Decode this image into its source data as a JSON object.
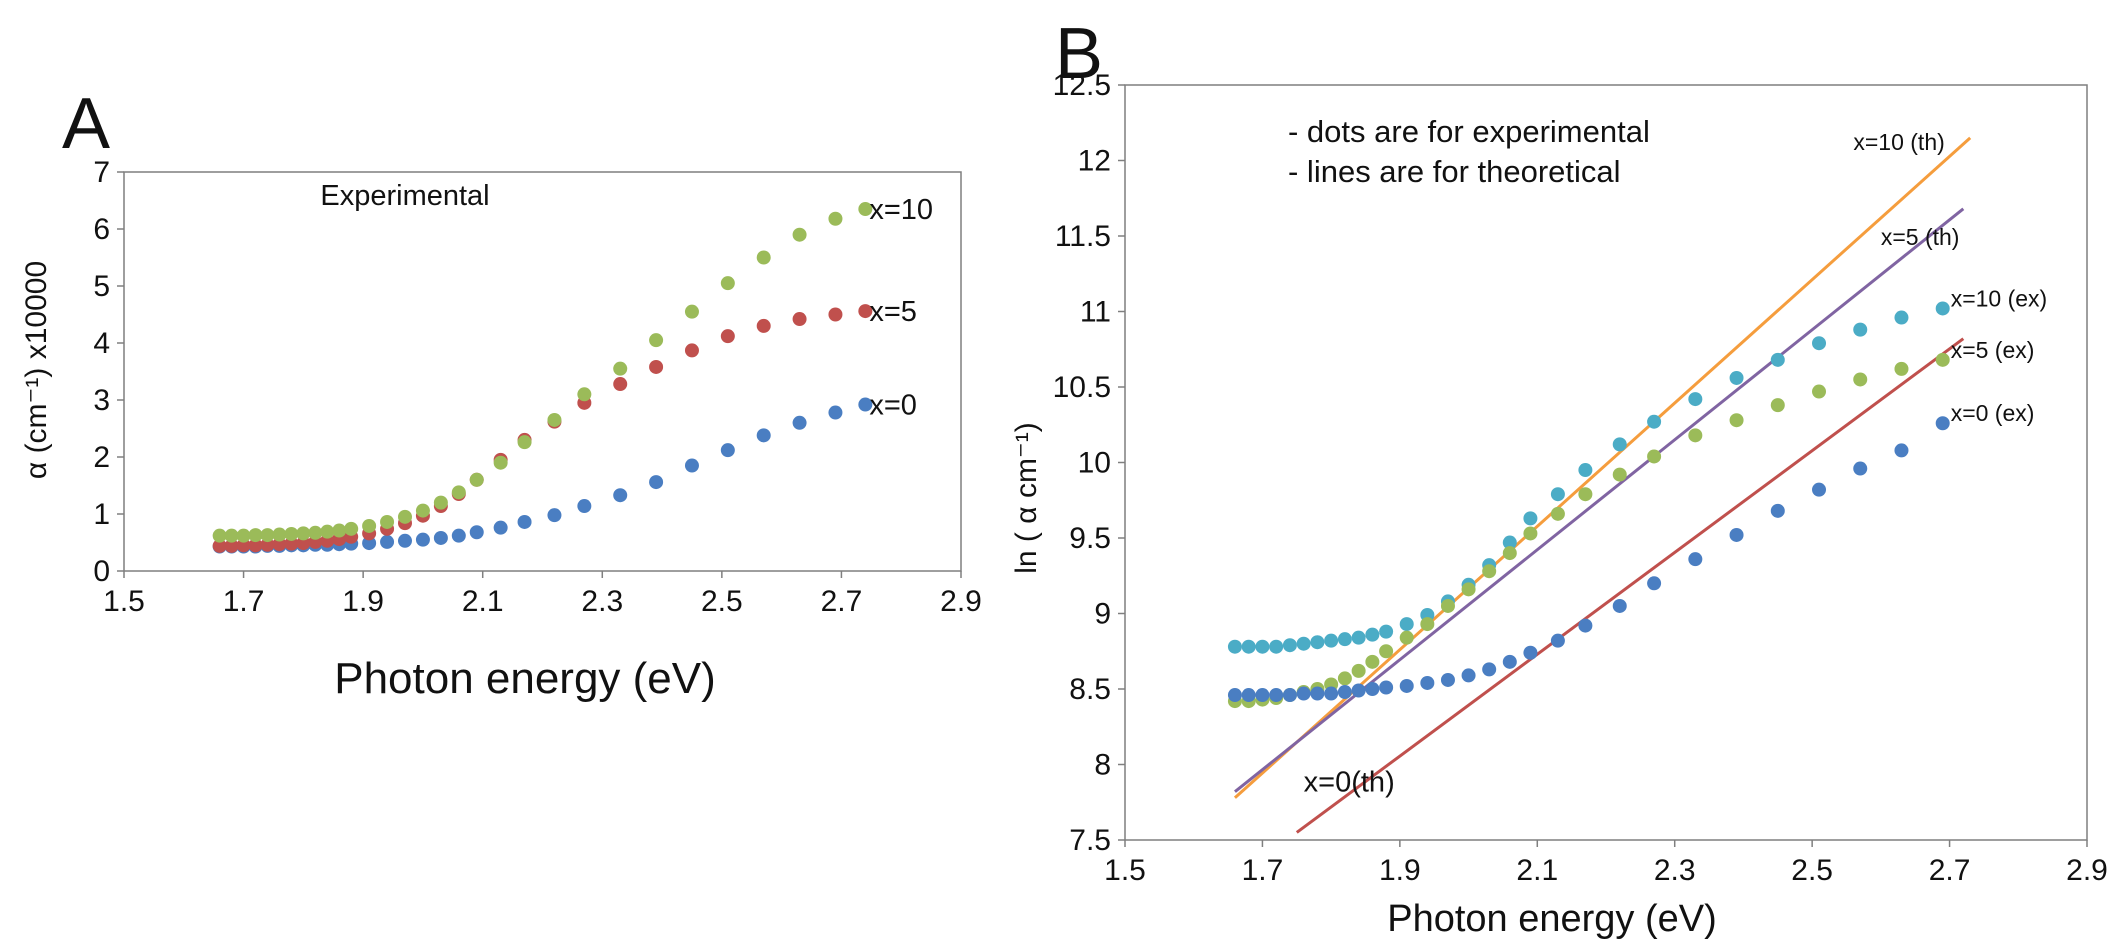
{
  "chart_data": [
    {
      "panel": "A",
      "type": "scatter",
      "title": "Experimental",
      "xlabel": "Photon energy (eV)",
      "ylabel": "α (cm⁻¹) x10000",
      "xlim": [
        1.5,
        2.9
      ],
      "ylim": [
        0,
        7
      ],
      "xticks": [
        "1.5",
        "1.7",
        "1.9",
        "2.1",
        "2.3",
        "2.5",
        "2.7",
        "2.9"
      ],
      "yticks": [
        "0",
        "1",
        "2",
        "3",
        "4",
        "5",
        "6",
        "7"
      ],
      "series": [
        {
          "name": "x=0",
          "color": "#4a7ec2",
          "x": [
            1.66,
            1.68,
            1.7,
            1.72,
            1.74,
            1.76,
            1.78,
            1.8,
            1.82,
            1.84,
            1.86,
            1.88,
            1.91,
            1.94,
            1.97,
            2.0,
            2.03,
            2.06,
            2.09,
            2.13,
            2.17,
            2.22,
            2.27,
            2.33,
            2.39,
            2.45,
            2.51,
            2.57,
            2.63,
            2.69,
            2.74
          ],
          "y": [
            0.43,
            0.43,
            0.43,
            0.43,
            0.44,
            0.44,
            0.45,
            0.45,
            0.46,
            0.46,
            0.47,
            0.48,
            0.49,
            0.51,
            0.53,
            0.55,
            0.58,
            0.62,
            0.68,
            0.76,
            0.86,
            0.98,
            1.14,
            1.33,
            1.56,
            1.85,
            2.12,
            2.38,
            2.6,
            2.78,
            2.92
          ]
        },
        {
          "name": "x=5",
          "color": "#c0504d",
          "x": [
            1.66,
            1.68,
            1.7,
            1.72,
            1.74,
            1.76,
            1.78,
            1.8,
            1.82,
            1.84,
            1.86,
            1.88,
            1.91,
            1.94,
            1.97,
            2.0,
            2.03,
            2.06,
            2.09,
            2.13,
            2.17,
            2.22,
            2.27,
            2.33,
            2.39,
            2.45,
            2.51,
            2.57,
            2.63,
            2.69,
            2.74
          ],
          "y": [
            0.44,
            0.44,
            0.45,
            0.45,
            0.46,
            0.47,
            0.48,
            0.49,
            0.51,
            0.53,
            0.56,
            0.6,
            0.66,
            0.74,
            0.84,
            0.97,
            1.14,
            1.35,
            1.6,
            1.95,
            2.3,
            2.62,
            2.95,
            3.28,
            3.58,
            3.87,
            4.12,
            4.3,
            4.42,
            4.5,
            4.56
          ]
        },
        {
          "name": "x=10",
          "color": "#9bbb59",
          "x": [
            1.66,
            1.68,
            1.7,
            1.72,
            1.74,
            1.76,
            1.78,
            1.8,
            1.82,
            1.84,
            1.86,
            1.88,
            1.91,
            1.94,
            1.97,
            2.0,
            2.03,
            2.06,
            2.09,
            2.13,
            2.17,
            2.22,
            2.27,
            2.33,
            2.39,
            2.45,
            2.51,
            2.57,
            2.63,
            2.69,
            2.74
          ],
          "y": [
            0.62,
            0.62,
            0.62,
            0.63,
            0.63,
            0.64,
            0.65,
            0.66,
            0.67,
            0.69,
            0.71,
            0.74,
            0.79,
            0.86,
            0.95,
            1.06,
            1.2,
            1.38,
            1.6,
            1.9,
            2.26,
            2.65,
            3.1,
            3.55,
            4.05,
            4.55,
            5.05,
            5.5,
            5.9,
            6.18,
            6.35
          ]
        }
      ],
      "annotations": [
        "x=10",
        "x=5",
        "x=0"
      ]
    },
    {
      "panel": "B",
      "type": "scatter",
      "xlabel": "Photon energy (eV)",
      "ylabel": "ln ( α cm⁻¹)",
      "xlim": [
        1.5,
        2.9
      ],
      "ylim": [
        7.5,
        12.5
      ],
      "xticks": [
        "1.5",
        "1.7",
        "1.9",
        "2.1",
        "2.3",
        "2.5",
        "2.7",
        "2.9"
      ],
      "yticks": [
        "7.5",
        "8",
        "8.5",
        "9",
        "9.5",
        "10",
        "10.5",
        "11",
        "11.5",
        "12",
        "12.5"
      ],
      "notes": [
        "- dots are for experimental",
        "- lines are for theoretical"
      ],
      "series": [
        {
          "name": "x=10 (ex)",
          "color": "#4bacc6",
          "x": [
            1.66,
            1.68,
            1.7,
            1.72,
            1.74,
            1.76,
            1.78,
            1.8,
            1.82,
            1.84,
            1.86,
            1.88,
            1.91,
            1.94,
            1.97,
            2.0,
            2.03,
            2.06,
            2.09,
            2.13,
            2.17,
            2.22,
            2.27,
            2.33,
            2.39,
            2.45,
            2.51,
            2.57,
            2.63,
            2.69
          ],
          "y": [
            8.78,
            8.78,
            8.78,
            8.78,
            8.79,
            8.8,
            8.81,
            8.82,
            8.83,
            8.84,
            8.86,
            8.88,
            8.93,
            8.99,
            9.08,
            9.19,
            9.32,
            9.47,
            9.63,
            9.79,
            9.95,
            10.12,
            10.27,
            10.42,
            10.56,
            10.68,
            10.79,
            10.88,
            10.96,
            11.02
          ]
        },
        {
          "name": "x=5 (ex)",
          "color": "#9bbb59",
          "x": [
            1.66,
            1.68,
            1.7,
            1.72,
            1.74,
            1.76,
            1.78,
            1.8,
            1.82,
            1.84,
            1.86,
            1.88,
            1.91,
            1.94,
            1.97,
            2.0,
            2.03,
            2.06,
            2.09,
            2.13,
            2.17,
            2.22,
            2.27,
            2.33,
            2.39,
            2.45,
            2.51,
            2.57,
            2.63,
            2.69
          ],
          "y": [
            8.42,
            8.42,
            8.43,
            8.44,
            8.46,
            8.48,
            8.5,
            8.53,
            8.57,
            8.62,
            8.68,
            8.75,
            8.84,
            8.93,
            9.05,
            9.16,
            9.28,
            9.4,
            9.53,
            9.66,
            9.79,
            9.92,
            10.04,
            10.18,
            10.28,
            10.38,
            10.47,
            10.55,
            10.62,
            10.68
          ]
        },
        {
          "name": "x=0 (ex)",
          "color": "#4a7ec2",
          "x": [
            1.66,
            1.68,
            1.7,
            1.72,
            1.74,
            1.76,
            1.78,
            1.8,
            1.82,
            1.84,
            1.86,
            1.88,
            1.91,
            1.94,
            1.97,
            2.0,
            2.03,
            2.06,
            2.09,
            2.13,
            2.17,
            2.22,
            2.27,
            2.33,
            2.39,
            2.45,
            2.51,
            2.57,
            2.63,
            2.69
          ],
          "y": [
            8.46,
            8.46,
            8.46,
            8.46,
            8.46,
            8.47,
            8.47,
            8.47,
            8.48,
            8.49,
            8.5,
            8.51,
            8.52,
            8.54,
            8.56,
            8.59,
            8.63,
            8.68,
            8.74,
            8.82,
            8.92,
            9.05,
            9.2,
            9.36,
            9.52,
            9.68,
            9.82,
            9.96,
            10.08,
            10.26
          ]
        }
      ],
      "lines": [
        {
          "name": "x=10 (th)",
          "color": "#f59d3d",
          "x": [
            1.66,
            2.73
          ],
          "y": [
            7.78,
            12.15
          ]
        },
        {
          "name": "x=5 (th)",
          "color": "#8064a2",
          "x": [
            1.66,
            2.72
          ],
          "y": [
            7.82,
            11.68
          ]
        },
        {
          "name": "x=0(th)",
          "color": "#c0504d",
          "x": [
            1.75,
            2.72
          ],
          "y": [
            7.55,
            10.82
          ]
        }
      ]
    }
  ]
}
